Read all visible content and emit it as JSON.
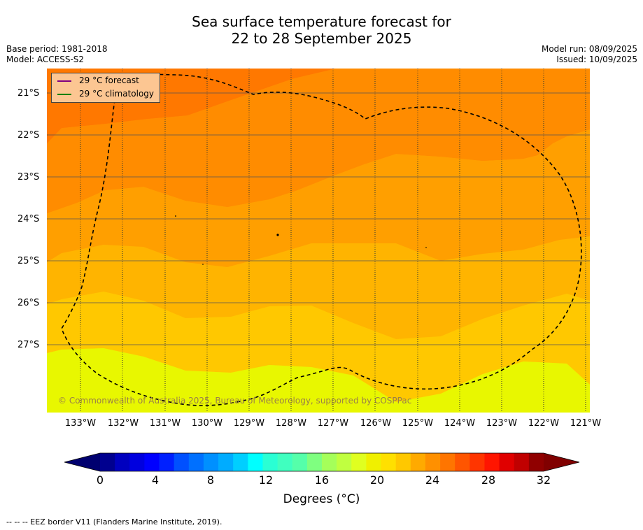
{
  "title_line1": "Sea surface temperature forecast for",
  "title_line2": "22 to 28 September 2025",
  "base_period": "Base period: 1981-2018",
  "model": "Model: ACCESS-S2",
  "model_run": "Model run: 08/09/2025",
  "issued": "Issued: 10/09/2025",
  "legend": {
    "forecast_label": "29 °C  forecast",
    "forecast_color": "#800080",
    "climatology_label": "29 °C  climatology",
    "climatology_color": "#008000"
  },
  "copyright": "© Commonwealth of Australia 2025, Bureau of Meteorology, supported by COSPPac",
  "lat_labels": [
    "21°S",
    "22°S",
    "23°S",
    "24°S",
    "25°S",
    "26°S",
    "27°S"
  ],
  "lon_labels": [
    "133°W",
    "132°W",
    "131°W",
    "130°W",
    "129°W",
    "128°W",
    "127°W",
    "126°W",
    "125°W",
    "124°W",
    "123°W",
    "122°W",
    "121°W"
  ],
  "colorbar": {
    "ticks": [
      "0",
      "4",
      "8",
      "12",
      "16",
      "20",
      "24",
      "28",
      "32"
    ],
    "label": "Degrees (°C)",
    "colors": [
      "#00008f",
      "#0000bf",
      "#0000df",
      "#0000ff",
      "#0020ff",
      "#0050ff",
      "#0070ff",
      "#0090ff",
      "#00acff",
      "#00cfff",
      "#00ffff",
      "#2affd4",
      "#40ffbf",
      "#55ffaa",
      "#7fff80",
      "#a5ff5a",
      "#c0ff40",
      "#e0ff20",
      "#f0f000",
      "#ffe000",
      "#ffc800",
      "#ffaa00",
      "#ff9000",
      "#ff7500",
      "#ff5500",
      "#ff3500",
      "#ff1500",
      "#e00000",
      "#c00000",
      "#900000"
    ],
    "under_color": "#00006f",
    "over_color": "#800000"
  },
  "footnote": "--  --  -- EEZ border V11 (Flanders Marine Institute, 2019).",
  "map_colors": {
    "band_28": "#ff7800",
    "band_27": "#ff8c00",
    "band_26": "#ff9f00",
    "band_25": "#ffb400",
    "band_24": "#ffc800",
    "band_23": "#ffd800",
    "band_22": "#ffe600",
    "band_21": "#e8f700"
  }
}
